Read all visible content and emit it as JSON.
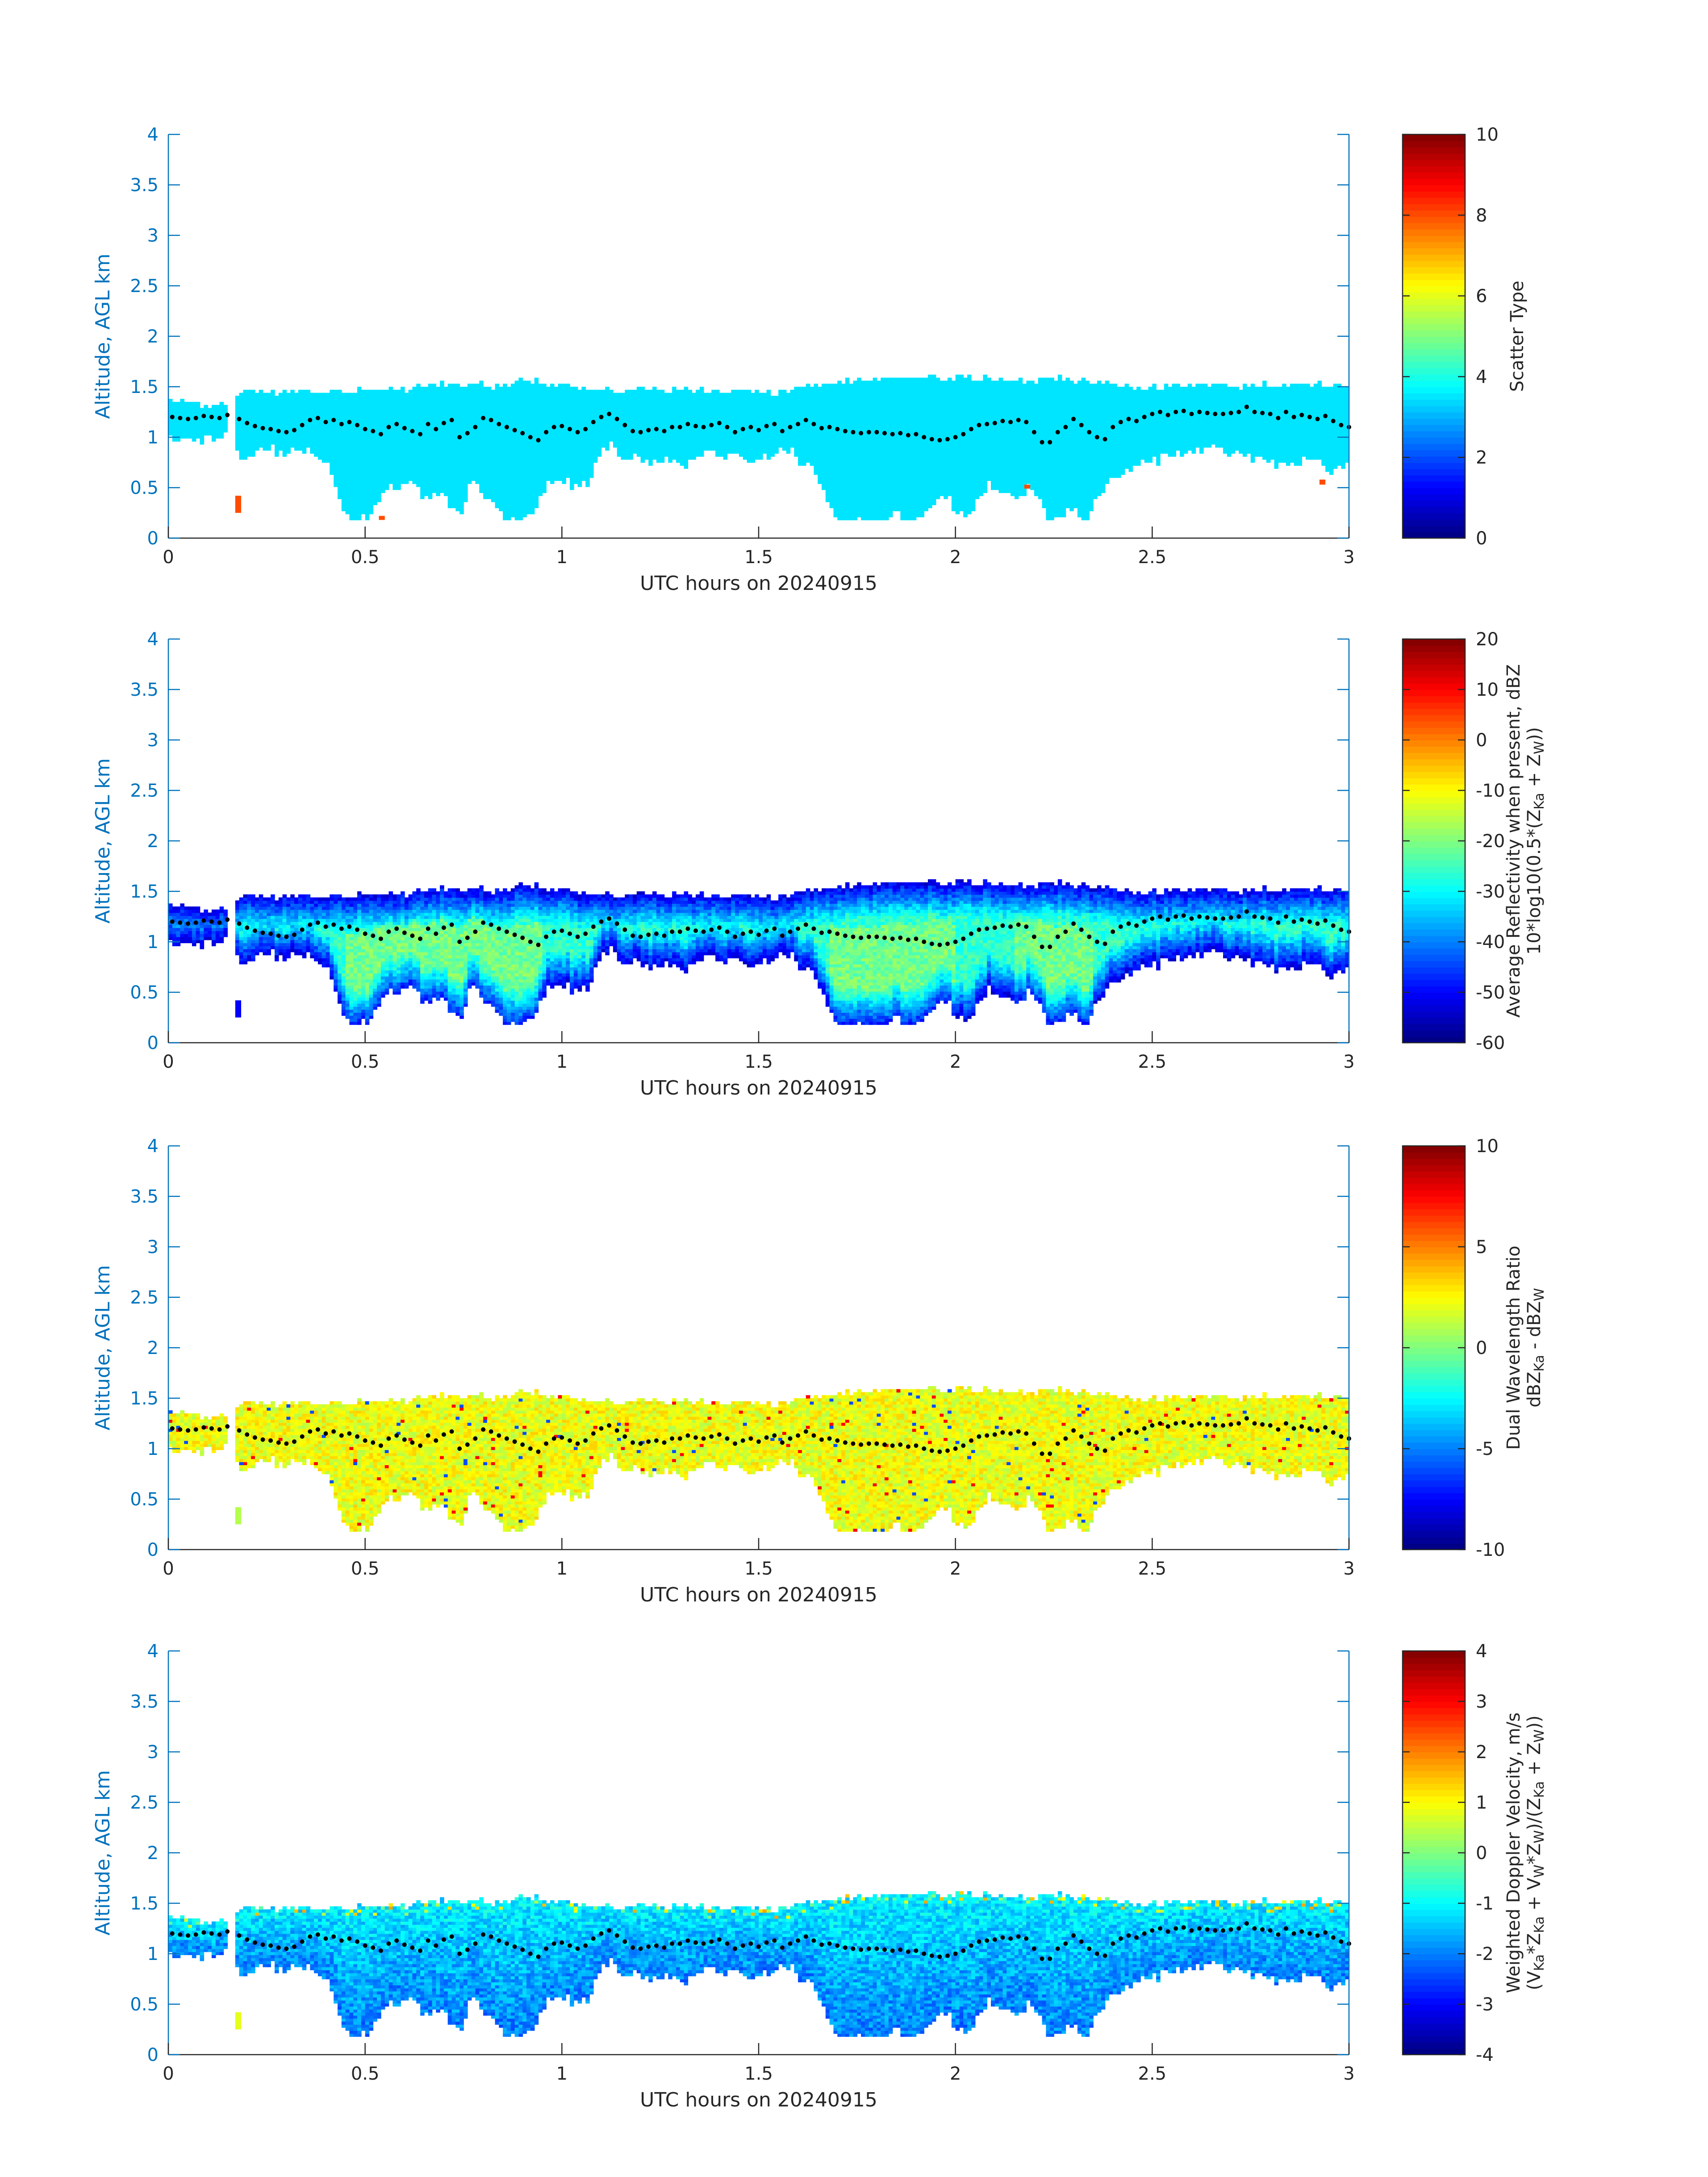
{
  "figure": {
    "x_tick_labels": [
      "0",
      "0.5",
      "1",
      "1.5",
      "2",
      "2.5",
      "3"
    ],
    "y_tick_labels": [
      "0",
      "0.5",
      "1",
      "1.5",
      "2",
      "2.5",
      "3",
      "3.5",
      "4"
    ],
    "axis_color": "#0072bd",
    "text_color": "#262626",
    "dot_color": "#000000"
  },
  "chart_data": [
    {
      "type": "heatmap",
      "xlabel": "UTC hours on 20240915",
      "ylabel": "Altitude, AGL km",
      "xlim": [
        0,
        3
      ],
      "ylim": [
        0,
        4
      ],
      "grid": false,
      "colormap": "jet",
      "colorbar": {
        "label_lines": [
          "Scatter Type"
        ],
        "range": [
          0,
          10
        ],
        "ticks": [
          "0",
          "2",
          "4",
          "6",
          "8",
          "10"
        ]
      },
      "field_summary": "Value ~3.5 (cyan) almost everywhere in the echo; a few isolated cells with value ~8 near t=0.18 h (0.25-0.4 km), t=0.54 h (0.2 km), t=2.18 h (0.5 km), t=2.93 h (0.55 km)"
    },
    {
      "type": "heatmap",
      "xlabel": "UTC hours on 20240915",
      "ylabel": "Altitude, AGL km",
      "xlim": [
        0,
        3
      ],
      "ylim": [
        0,
        4
      ],
      "grid": false,
      "colormap": "jet",
      "colorbar": {
        "label_lines": [
          "Average Reflectivity when present, dBZ",
          "10*log10(0.5*(Z",
          "Ka",
          " + Z",
          "W",
          "))"
        ],
        "range": [
          -60,
          20
        ],
        "ticks": [
          "-60",
          "-50",
          "-40",
          "-30",
          "-20",
          "-10",
          "0",
          "10",
          "20"
        ]
      },
      "field_summary": "Reflectivity about -50 dBZ at echo edges, up to about -20 dBZ in fall streaks near 0.5-0.9 h, 1.7-2.0 h and 2.2-2.3 h"
    },
    {
      "type": "heatmap",
      "xlabel": "UTC hours on 20240915",
      "ylabel": "Altitude, AGL km",
      "xlim": [
        0,
        3
      ],
      "ylim": [
        0,
        4
      ],
      "grid": false,
      "colormap": "jet",
      "colorbar": {
        "label_lines": [
          "Dual Wavelength Ratio",
          "dBZ",
          "Ka",
          " - dBZ",
          "W"
        ],
        "range": [
          -10,
          10
        ],
        "ticks": [
          "-10",
          "-5",
          "0",
          "5",
          "10"
        ]
      },
      "field_summary": "DWR mostly about +1 to +3 dB (yellow-green), some speckle of -5 and +7 values at edges"
    },
    {
      "type": "heatmap",
      "xlabel": "UTC hours on 20240915",
      "ylabel": "Altitude, AGL km",
      "xlim": [
        0,
        3
      ],
      "ylim": [
        0,
        4
      ],
      "grid": false,
      "colormap": "jet",
      "colorbar": {
        "label_lines": [
          "Weighted Doppler Velocity, m/s",
          "(V",
          "Ka",
          "*Z",
          "Ka",
          " + V",
          "W",
          "*Z",
          "W",
          ")/(Z",
          "Ka",
          " + Z",
          "W",
          "))"
        ],
        "range": [
          -4,
          4
        ],
        "ticks": [
          "-4",
          "-3",
          "-2",
          "-1",
          "0",
          "1",
          "2",
          "3",
          "4"
        ]
      },
      "field_summary": "Velocity mostly -1 to -1.5 m/s (cyan), down to about -2.5 m/s in fall streaks, near -0.5 m/s near cloud top"
    }
  ],
  "cloud_echo": {
    "top_km": [
      [
        0.0,
        1.33
      ],
      [
        0.05,
        1.33
      ],
      [
        0.1,
        1.32
      ],
      [
        0.15,
        1.31
      ],
      [
        0.17,
        1.4
      ],
      [
        0.2,
        1.44
      ],
      [
        0.25,
        1.44
      ],
      [
        0.3,
        1.44
      ],
      [
        0.35,
        1.44
      ],
      [
        0.4,
        1.45
      ],
      [
        0.45,
        1.45
      ],
      [
        0.5,
        1.46
      ],
      [
        0.55,
        1.45
      ],
      [
        0.6,
        1.47
      ],
      [
        0.65,
        1.5
      ],
      [
        0.7,
        1.52
      ],
      [
        0.75,
        1.51
      ],
      [
        0.8,
        1.5
      ],
      [
        0.85,
        1.52
      ],
      [
        0.9,
        1.55
      ],
      [
        0.95,
        1.52
      ],
      [
        1.0,
        1.49
      ],
      [
        1.05,
        1.47
      ],
      [
        1.1,
        1.45
      ],
      [
        1.15,
        1.46
      ],
      [
        1.2,
        1.46
      ],
      [
        1.25,
        1.45
      ],
      [
        1.3,
        1.45
      ],
      [
        1.35,
        1.44
      ],
      [
        1.4,
        1.44
      ],
      [
        1.45,
        1.44
      ],
      [
        1.5,
        1.43
      ],
      [
        1.55,
        1.44
      ],
      [
        1.6,
        1.47
      ],
      [
        1.65,
        1.5
      ],
      [
        1.7,
        1.54
      ],
      [
        1.75,
        1.55
      ],
      [
        1.8,
        1.55
      ],
      [
        1.85,
        1.56
      ],
      [
        1.9,
        1.57
      ],
      [
        1.95,
        1.57
      ],
      [
        2.0,
        1.58
      ],
      [
        2.05,
        1.57
      ],
      [
        2.1,
        1.55
      ],
      [
        2.15,
        1.55
      ],
      [
        2.2,
        1.55
      ],
      [
        2.25,
        1.56
      ],
      [
        2.3,
        1.55
      ],
      [
        2.35,
        1.53
      ],
      [
        2.4,
        1.5
      ],
      [
        2.45,
        1.48
      ],
      [
        2.5,
        1.47
      ],
      [
        2.55,
        1.49
      ],
      [
        2.6,
        1.5
      ],
      [
        2.65,
        1.5
      ],
      [
        2.7,
        1.49
      ],
      [
        2.75,
        1.5
      ],
      [
        2.8,
        1.5
      ],
      [
        2.85,
        1.5
      ],
      [
        2.9,
        1.5
      ],
      [
        2.95,
        1.5
      ],
      [
        3.0,
        1.5
      ]
    ],
    "base_km": [
      [
        0.0,
        0.98
      ],
      [
        0.03,
        0.95
      ],
      [
        0.06,
        1.0
      ],
      [
        0.09,
        0.96
      ],
      [
        0.12,
        1.02
      ],
      [
        0.15,
        1.02
      ],
      [
        0.17,
        0.85
      ],
      [
        0.2,
        0.8
      ],
      [
        0.23,
        0.86
      ],
      [
        0.26,
        0.9
      ],
      [
        0.29,
        0.82
      ],
      [
        0.32,
        0.88
      ],
      [
        0.35,
        0.85
      ],
      [
        0.38,
        0.8
      ],
      [
        0.41,
        0.7
      ],
      [
        0.44,
        0.3
      ],
      [
        0.47,
        0.18
      ],
      [
        0.5,
        0.18
      ],
      [
        0.53,
        0.35
      ],
      [
        0.56,
        0.55
      ],
      [
        0.59,
        0.5
      ],
      [
        0.62,
        0.58
      ],
      [
        0.65,
        0.4
      ],
      [
        0.68,
        0.45
      ],
      [
        0.71,
        0.35
      ],
      [
        0.74,
        0.18
      ],
      [
        0.77,
        0.55
      ],
      [
        0.8,
        0.45
      ],
      [
        0.83,
        0.3
      ],
      [
        0.86,
        0.18
      ],
      [
        0.89,
        0.18
      ],
      [
        0.92,
        0.22
      ],
      [
        0.95,
        0.45
      ],
      [
        0.98,
        0.6
      ],
      [
        1.01,
        0.55
      ],
      [
        1.04,
        0.5
      ],
      [
        1.07,
        0.55
      ],
      [
        1.1,
        0.9
      ],
      [
        1.13,
        0.92
      ],
      [
        1.16,
        0.78
      ],
      [
        1.19,
        0.82
      ],
      [
        1.22,
        0.75
      ],
      [
        1.25,
        0.72
      ],
      [
        1.28,
        0.8
      ],
      [
        1.31,
        0.7
      ],
      [
        1.34,
        0.78
      ],
      [
        1.37,
        0.85
      ],
      [
        1.4,
        0.8
      ],
      [
        1.43,
        0.85
      ],
      [
        1.46,
        0.82
      ],
      [
        1.49,
        0.78
      ],
      [
        1.52,
        0.8
      ],
      [
        1.55,
        0.85
      ],
      [
        1.58,
        0.88
      ],
      [
        1.61,
        0.75
      ],
      [
        1.64,
        0.68
      ],
      [
        1.67,
        0.4
      ],
      [
        1.7,
        0.18
      ],
      [
        1.73,
        0.18
      ],
      [
        1.76,
        0.18
      ],
      [
        1.79,
        0.18
      ],
      [
        1.82,
        0.18
      ],
      [
        1.85,
        0.25
      ],
      [
        1.88,
        0.18
      ],
      [
        1.91,
        0.18
      ],
      [
        1.94,
        0.3
      ],
      [
        1.97,
        0.45
      ],
      [
        2.0,
        0.3
      ],
      [
        2.03,
        0.18
      ],
      [
        2.06,
        0.4
      ],
      [
        2.09,
        0.55
      ],
      [
        2.12,
        0.45
      ],
      [
        2.15,
        0.35
      ],
      [
        2.18,
        0.5
      ],
      [
        2.21,
        0.45
      ],
      [
        2.24,
        0.18
      ],
      [
        2.27,
        0.22
      ],
      [
        2.3,
        0.3
      ],
      [
        2.33,
        0.18
      ],
      [
        2.36,
        0.45
      ],
      [
        2.39,
        0.55
      ],
      [
        2.42,
        0.6
      ],
      [
        2.45,
        0.7
      ],
      [
        2.48,
        0.8
      ],
      [
        2.51,
        0.75
      ],
      [
        2.54,
        0.85
      ],
      [
        2.57,
        0.8
      ],
      [
        2.6,
        0.85
      ],
      [
        2.63,
        0.9
      ],
      [
        2.66,
        0.92
      ],
      [
        2.69,
        0.85
      ],
      [
        2.72,
        0.88
      ],
      [
        2.75,
        0.8
      ],
      [
        2.78,
        0.8
      ],
      [
        2.81,
        0.75
      ],
      [
        2.84,
        0.7
      ],
      [
        2.87,
        0.75
      ],
      [
        2.9,
        0.8
      ],
      [
        2.93,
        0.75
      ],
      [
        2.96,
        0.65
      ],
      [
        2.99,
        0.7
      ],
      [
        3.0,
        0.75
      ]
    ],
    "gap_hours": [
      0.15,
      0.17
    ],
    "isolated_cells": [
      [
        0.17,
        0.25,
        0.42
      ]
    ]
  },
  "overlay_dots_km": [
    [
      0.01,
      1.2
    ],
    [
      0.03,
      1.19
    ],
    [
      0.05,
      1.18
    ],
    [
      0.07,
      1.19
    ],
    [
      0.09,
      1.21
    ],
    [
      0.11,
      1.2
    ],
    [
      0.13,
      1.19
    ],
    [
      0.15,
      1.22
    ],
    [
      0.18,
      1.18
    ],
    [
      0.2,
      1.14
    ],
    [
      0.22,
      1.11
    ],
    [
      0.24,
      1.09
    ],
    [
      0.26,
      1.08
    ],
    [
      0.28,
      1.06
    ],
    [
      0.3,
      1.05
    ],
    [
      0.32,
      1.07
    ],
    [
      0.34,
      1.12
    ],
    [
      0.36,
      1.17
    ],
    [
      0.38,
      1.19
    ],
    [
      0.4,
      1.15
    ],
    [
      0.42,
      1.17
    ],
    [
      0.44,
      1.13
    ],
    [
      0.46,
      1.15
    ],
    [
      0.48,
      1.12
    ],
    [
      0.5,
      1.08
    ],
    [
      0.52,
      1.06
    ],
    [
      0.54,
      1.03
    ],
    [
      0.56,
      1.1
    ],
    [
      0.58,
      1.13
    ],
    [
      0.6,
      1.09
    ],
    [
      0.62,
      1.06
    ],
    [
      0.64,
      1.03
    ],
    [
      0.66,
      1.13
    ],
    [
      0.68,
      1.08
    ],
    [
      0.7,
      1.14
    ],
    [
      0.72,
      1.17
    ],
    [
      0.74,
      1.0
    ],
    [
      0.76,
      1.04
    ],
    [
      0.78,
      1.1
    ],
    [
      0.8,
      1.19
    ],
    [
      0.82,
      1.17
    ],
    [
      0.84,
      1.13
    ],
    [
      0.86,
      1.1
    ],
    [
      0.88,
      1.07
    ],
    [
      0.9,
      1.04
    ],
    [
      0.92,
      1.0
    ],
    [
      0.94,
      0.97
    ],
    [
      0.96,
      1.05
    ],
    [
      0.98,
      1.1
    ],
    [
      1.0,
      1.11
    ],
    [
      1.02,
      1.08
    ],
    [
      1.04,
      1.05
    ],
    [
      1.06,
      1.08
    ],
    [
      1.08,
      1.15
    ],
    [
      1.1,
      1.2
    ],
    [
      1.12,
      1.23
    ],
    [
      1.14,
      1.18
    ],
    [
      1.16,
      1.12
    ],
    [
      1.18,
      1.06
    ],
    [
      1.2,
      1.05
    ],
    [
      1.22,
      1.07
    ],
    [
      1.24,
      1.08
    ],
    [
      1.26,
      1.06
    ],
    [
      1.28,
      1.1
    ],
    [
      1.3,
      1.1
    ],
    [
      1.32,
      1.13
    ],
    [
      1.34,
      1.11
    ],
    [
      1.36,
      1.1
    ],
    [
      1.38,
      1.12
    ],
    [
      1.4,
      1.14
    ],
    [
      1.42,
      1.1
    ],
    [
      1.44,
      1.05
    ],
    [
      1.46,
      1.08
    ],
    [
      1.48,
      1.1
    ],
    [
      1.5,
      1.07
    ],
    [
      1.52,
      1.11
    ],
    [
      1.54,
      1.13
    ],
    [
      1.56,
      1.06
    ],
    [
      1.58,
      1.1
    ],
    [
      1.6,
      1.13
    ],
    [
      1.62,
      1.17
    ],
    [
      1.64,
      1.13
    ],
    [
      1.66,
      1.09
    ],
    [
      1.68,
      1.1
    ],
    [
      1.7,
      1.08
    ],
    [
      1.72,
      1.06
    ],
    [
      1.74,
      1.05
    ],
    [
      1.76,
      1.04
    ],
    [
      1.78,
      1.05
    ],
    [
      1.8,
      1.05
    ],
    [
      1.82,
      1.04
    ],
    [
      1.84,
      1.03
    ],
    [
      1.86,
      1.04
    ],
    [
      1.88,
      1.02
    ],
    [
      1.9,
      1.03
    ],
    [
      1.92,
      1.0
    ],
    [
      1.94,
      0.98
    ],
    [
      1.96,
      0.97
    ],
    [
      1.98,
      0.98
    ],
    [
      2.0,
      1.0
    ],
    [
      2.02,
      1.03
    ],
    [
      2.04,
      1.08
    ],
    [
      2.06,
      1.12
    ],
    [
      2.08,
      1.13
    ],
    [
      2.1,
      1.14
    ],
    [
      2.12,
      1.16
    ],
    [
      2.14,
      1.15
    ],
    [
      2.16,
      1.17
    ],
    [
      2.18,
      1.15
    ],
    [
      2.2,
      1.05
    ],
    [
      2.22,
      0.95
    ],
    [
      2.24,
      0.95
    ],
    [
      2.26,
      1.05
    ],
    [
      2.28,
      1.1
    ],
    [
      2.3,
      1.18
    ],
    [
      2.32,
      1.12
    ],
    [
      2.34,
      1.05
    ],
    [
      2.36,
      1.0
    ],
    [
      2.38,
      0.98
    ],
    [
      2.4,
      1.1
    ],
    [
      2.42,
      1.15
    ],
    [
      2.44,
      1.18
    ],
    [
      2.46,
      1.16
    ],
    [
      2.48,
      1.2
    ],
    [
      2.5,
      1.23
    ],
    [
      2.52,
      1.25
    ],
    [
      2.54,
      1.22
    ],
    [
      2.56,
      1.25
    ],
    [
      2.58,
      1.26
    ],
    [
      2.6,
      1.23
    ],
    [
      2.62,
      1.25
    ],
    [
      2.64,
      1.24
    ],
    [
      2.66,
      1.23
    ],
    [
      2.68,
      1.23
    ],
    [
      2.7,
      1.24
    ],
    [
      2.72,
      1.25
    ],
    [
      2.74,
      1.3
    ],
    [
      2.76,
      1.25
    ],
    [
      2.78,
      1.24
    ],
    [
      2.8,
      1.23
    ],
    [
      2.82,
      1.19
    ],
    [
      2.84,
      1.25
    ],
    [
      2.86,
      1.2
    ],
    [
      2.88,
      1.22
    ],
    [
      2.9,
      1.2
    ],
    [
      2.92,
      1.18
    ],
    [
      2.94,
      1.21
    ],
    [
      2.96,
      1.16
    ],
    [
      2.98,
      1.12
    ],
    [
      3.0,
      1.1
    ]
  ]
}
